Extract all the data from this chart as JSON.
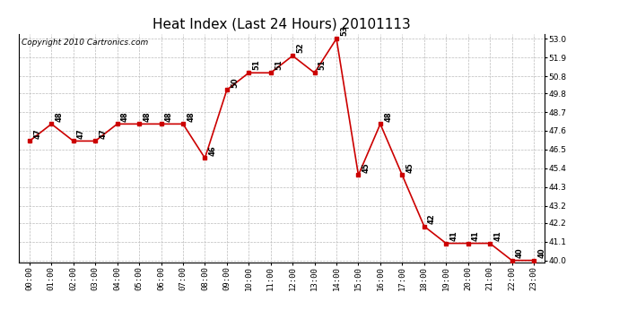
{
  "title": "Heat Index (Last 24 Hours) 20101113",
  "copyright": "Copyright 2010 Cartronics.com",
  "hours": [
    "00:00",
    "01:00",
    "02:00",
    "03:00",
    "04:00",
    "05:00",
    "06:00",
    "07:00",
    "08:00",
    "09:00",
    "10:00",
    "11:00",
    "12:00",
    "13:00",
    "14:00",
    "15:00",
    "16:00",
    "17:00",
    "18:00",
    "19:00",
    "20:00",
    "21:00",
    "22:00",
    "23:00"
  ],
  "values": [
    47,
    48,
    47,
    47,
    48,
    48,
    48,
    48,
    46,
    50,
    51,
    51,
    52,
    51,
    53,
    45,
    48,
    45,
    42,
    41,
    41,
    41,
    40,
    40
  ],
  "line_color": "#cc0000",
  "marker_color": "#cc0000",
  "bg_color": "#ffffff",
  "grid_color": "#bbbbbb",
  "ylim_min": 39.9,
  "ylim_max": 53.3,
  "yticks": [
    40.0,
    41.1,
    42.2,
    43.2,
    44.3,
    45.4,
    46.5,
    47.6,
    48.7,
    49.8,
    50.8,
    51.9,
    53.0
  ],
  "title_fontsize": 11,
  "copyright_fontsize": 6.5,
  "label_fontsize": 6,
  "tick_fontsize": 6.5
}
